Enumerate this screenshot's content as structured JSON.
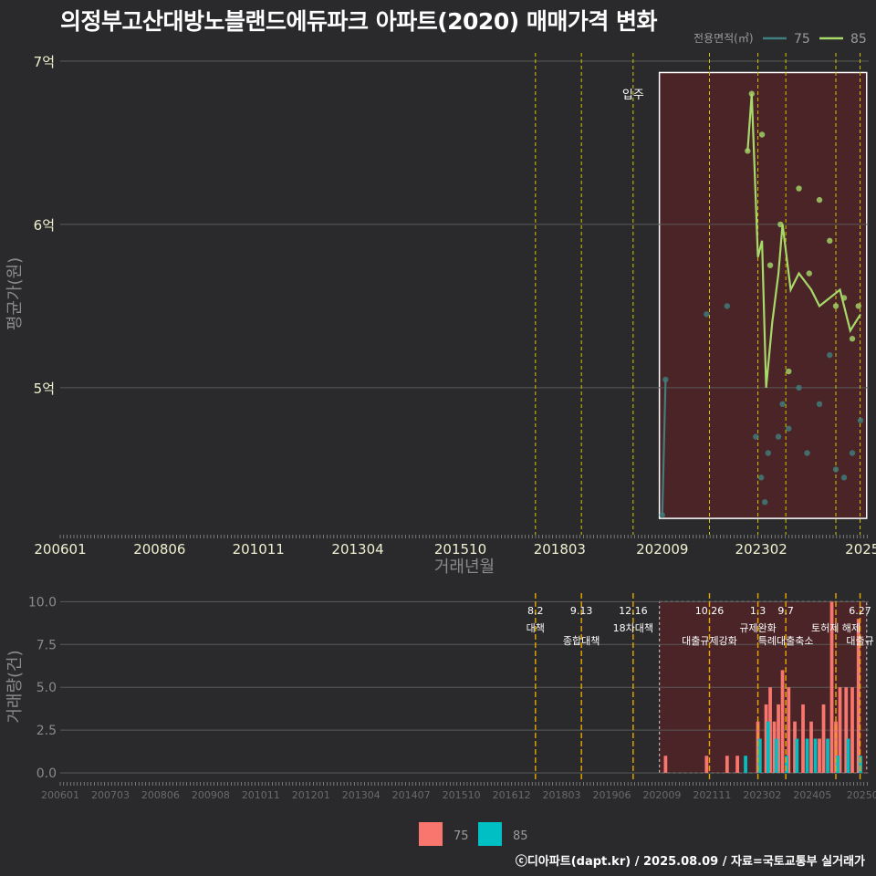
{
  "title": "의정부고산대방노블랜드에듀파크 아파트(2020) 매매가격 변화",
  "footer": "ⓒ디아파트(dapt.kr) / 2025.08.09 / 자료=국토교통부 실거래가",
  "legend_top": {
    "title": "전용면적(㎡)",
    "items": [
      {
        "label": "75",
        "color": "#3f7f7f"
      },
      {
        "label": "85",
        "color": "#a6d96a"
      }
    ]
  },
  "legend_bottom": {
    "items": [
      {
        "label": "75",
        "color": "#f8766d"
      },
      {
        "label": "85",
        "color": "#00bfc4"
      }
    ]
  },
  "annotation_top": "입주",
  "chart_data": [
    {
      "type": "line",
      "xlabel": "거래년월",
      "ylabel": "평균가(원)",
      "x_ticks": [
        "200601",
        "200806",
        "201011",
        "201304",
        "201510",
        "201803",
        "202009",
        "202302",
        "2025"
      ],
      "y_ticks": [
        {
          "value": 7,
          "label": "7억"
        },
        {
          "value": 6,
          "label": "6억"
        },
        {
          "value": 5,
          "label": "5억"
        }
      ],
      "ylim": [
        4.1,
        7.05
      ],
      "xlim": [
        2006.0,
        2025.7
      ],
      "series": [
        {
          "name": "75",
          "color": "#3f7f7f",
          "line": [
            [
              2020.67,
              4.22
            ],
            [
              2020.75,
              5.05
            ]
          ],
          "points": [
            [
              2020.67,
              4.22
            ],
            [
              2020.75,
              5.05
            ],
            [
              2021.75,
              5.45
            ],
            [
              2022.25,
              5.5
            ],
            [
              2022.95,
              4.7
            ],
            [
              2023.08,
              4.45
            ],
            [
              2023.17,
              4.3
            ],
            [
              2023.25,
              4.6
            ],
            [
              2023.5,
              4.7
            ],
            [
              2023.6,
              4.9
            ],
            [
              2023.75,
              4.75
            ],
            [
              2024.0,
              5.0
            ],
            [
              2024.2,
              4.6
            ],
            [
              2024.5,
              4.9
            ],
            [
              2024.75,
              5.2
            ],
            [
              2024.9,
              4.5
            ],
            [
              2025.1,
              4.45
            ],
            [
              2025.3,
              4.6
            ],
            [
              2025.5,
              4.8
            ]
          ]
        },
        {
          "name": "85",
          "color": "#a6d96a",
          "line": [
            [
              2022.75,
              6.45
            ],
            [
              2022.85,
              6.8
            ],
            [
              2023.0,
              5.8
            ],
            [
              2023.1,
              5.9
            ],
            [
              2023.2,
              5.0
            ],
            [
              2023.35,
              5.4
            ],
            [
              2023.5,
              5.7
            ],
            [
              2023.6,
              6.0
            ],
            [
              2023.8,
              5.6
            ],
            [
              2024.0,
              5.7
            ],
            [
              2024.3,
              5.6
            ],
            [
              2024.5,
              5.5
            ],
            [
              2024.75,
              5.55
            ],
            [
              2025.0,
              5.6
            ],
            [
              2025.25,
              5.35
            ],
            [
              2025.5,
              5.45
            ]
          ],
          "points": [
            [
              2022.75,
              6.45
            ],
            [
              2022.85,
              6.8
            ],
            [
              2023.1,
              6.55
            ],
            [
              2023.3,
              5.75
            ],
            [
              2023.55,
              6.0
            ],
            [
              2023.75,
              5.1
            ],
            [
              2024.0,
              6.22
            ],
            [
              2024.25,
              5.7
            ],
            [
              2024.5,
              6.15
            ],
            [
              2024.75,
              5.9
            ],
            [
              2024.9,
              5.5
            ],
            [
              2025.1,
              5.55
            ],
            [
              2025.3,
              5.3
            ],
            [
              2025.45,
              5.5
            ]
          ]
        }
      ]
    },
    {
      "type": "bar",
      "xlabel": "",
      "ylabel": "거래량(건)",
      "x_ticks": [
        "200601",
        "200703",
        "200806",
        "200908",
        "201011",
        "201201",
        "201304",
        "201407",
        "201510",
        "201612",
        "201803",
        "201906",
        "202009",
        "202111",
        "202302",
        "202405",
        "20250"
      ],
      "y_ticks": [
        "0.0",
        "2.5",
        "5.0",
        "7.5",
        "10.0"
      ],
      "ylim": [
        0,
        10.5
      ],
      "series": [
        {
          "name": "75",
          "color": "#f8766d",
          "values": [
            [
              2020.75,
              1
            ],
            [
              2021.75,
              1
            ],
            [
              2022.25,
              1
            ],
            [
              2022.5,
              1
            ],
            [
              2023.0,
              3
            ],
            [
              2023.2,
              4
            ],
            [
              2023.3,
              5
            ],
            [
              2023.4,
              3
            ],
            [
              2023.5,
              4
            ],
            [
              2023.6,
              6
            ],
            [
              2023.75,
              5
            ],
            [
              2023.9,
              3
            ],
            [
              2024.1,
              4
            ],
            [
              2024.3,
              3
            ],
            [
              2024.5,
              2
            ],
            [
              2024.6,
              4
            ],
            [
              2024.8,
              10
            ],
            [
              2024.9,
              3
            ],
            [
              2025.0,
              5
            ],
            [
              2025.15,
              5
            ],
            [
              2025.3,
              5
            ],
            [
              2025.45,
              9
            ]
          ]
        },
        {
          "name": "85",
          "color": "#00bfc4",
          "values": [
            [
              2022.7,
              1
            ],
            [
              2023.05,
              2
            ],
            [
              2023.25,
              3
            ],
            [
              2023.45,
              2
            ],
            [
              2023.7,
              1
            ],
            [
              2023.95,
              2
            ],
            [
              2024.2,
              2
            ],
            [
              2024.4,
              2
            ],
            [
              2024.7,
              2
            ],
            [
              2024.95,
              1
            ],
            [
              2025.2,
              2
            ],
            [
              2025.5,
              1
            ]
          ]
        }
      ]
    }
  ],
  "policy_lines": [
    {
      "x": 2017.58,
      "date": "8.2",
      "label": "대책"
    },
    {
      "x": 2018.7,
      "date": "9.13",
      "label": "종합대책"
    },
    {
      "x": 2019.96,
      "date": "12.16",
      "label": "18차대책"
    },
    {
      "x": 2021.82,
      "date": "10.26",
      "label": "대출규제강화"
    },
    {
      "x": 2023.0,
      "date": "1.3",
      "label": "규제완화"
    },
    {
      "x": 2023.68,
      "date": "9.7",
      "label": "특례대출축소"
    },
    {
      "x": 2024.9,
      "date": "",
      "label": "토허제 해제"
    },
    {
      "x": 2025.49,
      "date": "6.27",
      "label": "대출규"
    }
  ]
}
